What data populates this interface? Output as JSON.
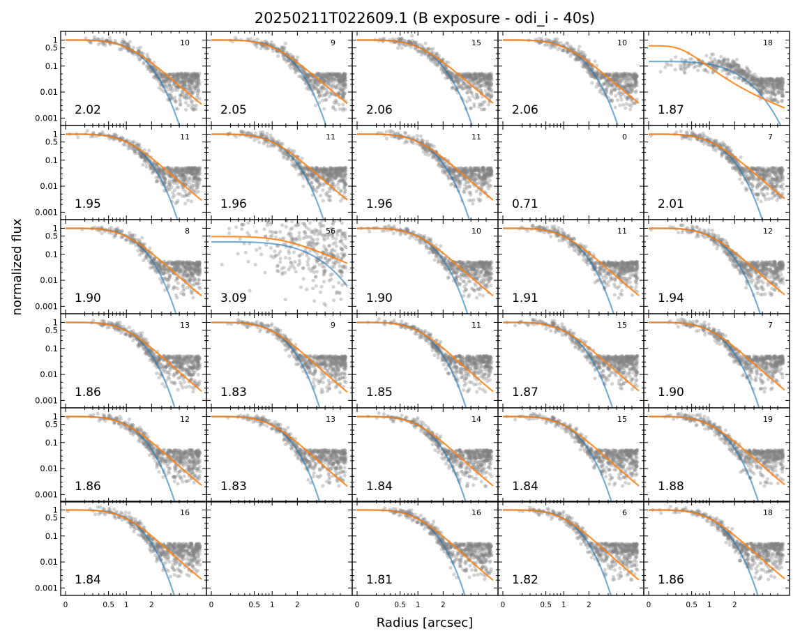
{
  "figure": {
    "title": "20250211T022609.1 (B exposure - odi_i - 40s)",
    "xlabel": "Radius [arcsec]",
    "ylabel": "normalized flux"
  },
  "chart_data": {
    "type": "scatter",
    "layout": {
      "rows": 6,
      "cols": 5
    },
    "x_scale": "sqrt",
    "y_scale": "log",
    "xlim": [
      0,
      5.0
    ],
    "ylim": [
      0.0008,
      1.4
    ],
    "x_ticks": [
      0,
      0.5,
      1,
      2
    ],
    "x_tick_labels": [
      "0",
      "0.5",
      "1",
      "2"
    ],
    "y_ticks": [
      1,
      0.5,
      0.1,
      0.01,
      0.001
    ],
    "y_tick_labels": [
      "1",
      "0.5",
      "0.1",
      "0.01",
      "0.001"
    ],
    "colors": {
      "points": "#808080",
      "fit_blue": "#1f77b4",
      "fit_orange": "#ff7f0e"
    },
    "panels": [
      {
        "fwhm": "2.02",
        "count": "10"
      },
      {
        "fwhm": "2.05",
        "count": "9"
      },
      {
        "fwhm": "2.06",
        "count": "15"
      },
      {
        "fwhm": "2.06",
        "count": "10"
      },
      {
        "fwhm": "1.87",
        "count": "18",
        "anomaly": "flat"
      },
      {
        "fwhm": "1.95",
        "count": "11"
      },
      {
        "fwhm": "1.96",
        "count": "11"
      },
      {
        "fwhm": "1.96",
        "count": "11"
      },
      {
        "fwhm": "0.71",
        "count": "0",
        "empty_data": true
      },
      {
        "fwhm": "2.01",
        "count": "7"
      },
      {
        "fwhm": "1.90",
        "count": "8"
      },
      {
        "fwhm": "3.09",
        "count": "56",
        "anomaly": "broad"
      },
      {
        "fwhm": "1.90",
        "count": "10"
      },
      {
        "fwhm": "1.91",
        "count": "11"
      },
      {
        "fwhm": "1.94",
        "count": "12"
      },
      {
        "fwhm": "1.86",
        "count": "13"
      },
      {
        "fwhm": "1.83",
        "count": "9"
      },
      {
        "fwhm": "1.85",
        "count": "11"
      },
      {
        "fwhm": "1.87",
        "count": "15"
      },
      {
        "fwhm": "1.90",
        "count": "7"
      },
      {
        "fwhm": "1.86",
        "count": "12"
      },
      {
        "fwhm": "1.83",
        "count": "13"
      },
      {
        "fwhm": "1.84",
        "count": "14"
      },
      {
        "fwhm": "1.84",
        "count": "15"
      },
      {
        "fwhm": "1.88",
        "count": "19"
      },
      {
        "fwhm": "1.84",
        "count": "16"
      },
      {
        "fwhm": "",
        "count": "",
        "blank": true
      },
      {
        "fwhm": "1.81",
        "count": "16"
      },
      {
        "fwhm": "1.82",
        "count": "6"
      },
      {
        "fwhm": "1.86",
        "count": "18"
      }
    ]
  }
}
